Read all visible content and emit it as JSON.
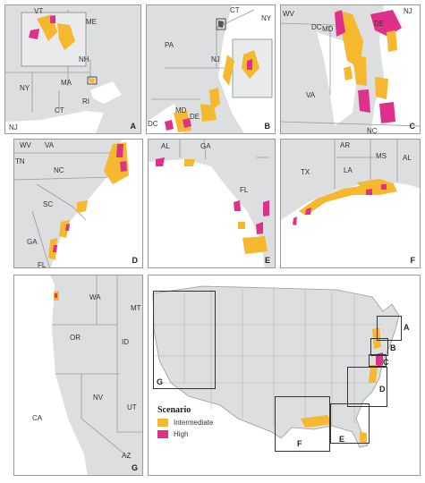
{
  "colors": {
    "intermediate": "#f5b82e",
    "high": "#e0318a",
    "land": "#dcdedf",
    "water": "#ffffff",
    "border": "#9a9a9a"
  },
  "panels": {
    "A": {
      "letter": "A",
      "states": [
        "VT",
        "ME",
        "NH",
        "NY",
        "MA",
        "CT",
        "RI",
        "NJ"
      ]
    },
    "B": {
      "letter": "B",
      "states": [
        "CT",
        "NY",
        "PA",
        "NJ",
        "MD",
        "DE",
        "DC"
      ]
    },
    "C": {
      "letter": "C",
      "states": [
        "WV",
        "DC",
        "MD",
        "NJ",
        "DE",
        "VA",
        "NC"
      ]
    },
    "D": {
      "letter": "D",
      "states": [
        "WV",
        "VA",
        "TN",
        "NC",
        "SC",
        "GA",
        "FL"
      ]
    },
    "E": {
      "letter": "E",
      "states": [
        "AL",
        "GA",
        "FL"
      ]
    },
    "F": {
      "letter": "F",
      "states": [
        "AR",
        "MS",
        "AL",
        "TX",
        "LA"
      ]
    },
    "G": {
      "letter": "G",
      "states": [
        "WA",
        "MT",
        "OR",
        "ID",
        "NV",
        "UT",
        "CA",
        "AZ"
      ]
    }
  },
  "main_map": {
    "box_labels": [
      "A",
      "B",
      "C",
      "D",
      "E",
      "F",
      "G"
    ]
  },
  "legend": {
    "title": "Scenario",
    "items": [
      {
        "label": "Intermediate",
        "color": "#f5b82e"
      },
      {
        "label": "High",
        "color": "#e0318a"
      }
    ]
  }
}
